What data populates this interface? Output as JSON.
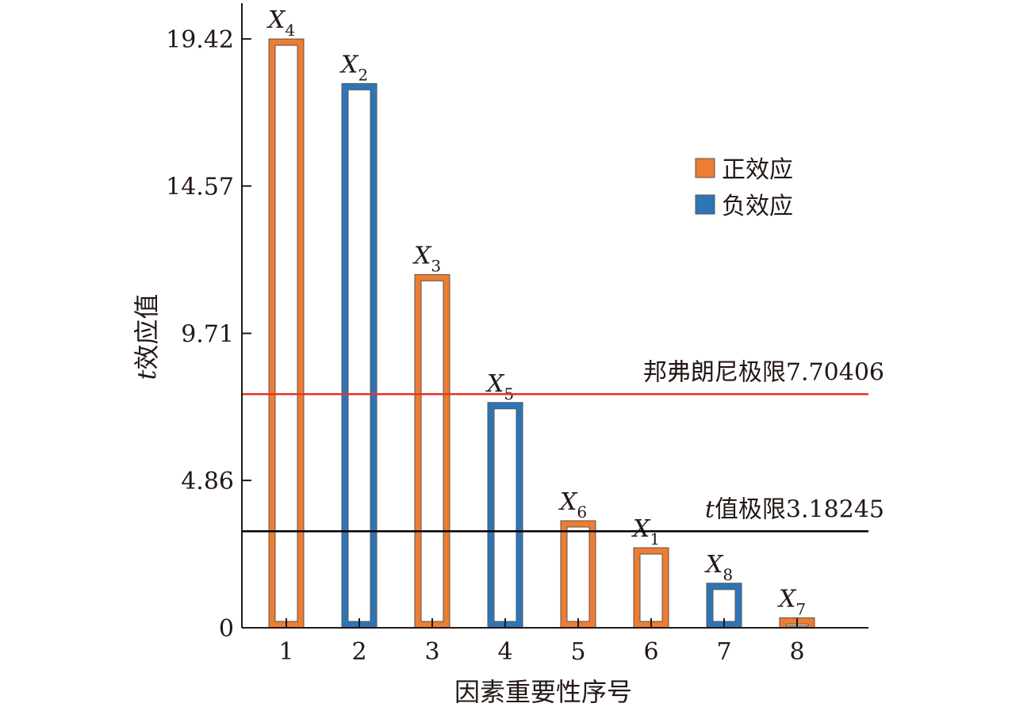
{
  "chart_data": {
    "type": "bar",
    "categories": [
      "1",
      "2",
      "3",
      "4",
      "5",
      "6",
      "7",
      "8"
    ],
    "values": [
      19.42,
      17.95,
      11.65,
      7.43,
      3.53,
      2.64,
      1.47,
      0.33
    ],
    "variables": [
      "X4",
      "X2",
      "X3",
      "X5",
      "X6",
      "X1",
      "X8",
      "X7"
    ],
    "bar_labels": [
      {
        "main": "X",
        "sub": "4"
      },
      {
        "main": "X",
        "sub": "2"
      },
      {
        "main": "X",
        "sub": "3"
      },
      {
        "main": "X",
        "sub": "5"
      },
      {
        "main": "X",
        "sub": "6"
      },
      {
        "main": "X",
        "sub": "1"
      },
      {
        "main": "X",
        "sub": "8"
      },
      {
        "main": "X",
        "sub": "7"
      }
    ],
    "effect": [
      "positive",
      "negative",
      "positive",
      "negative",
      "positive",
      "positive",
      "negative",
      "positive"
    ],
    "xlabel": "因素重要性序号",
    "ylabel_prefix": "t",
    "ylabel_rest": "效应值",
    "yticks": [
      0,
      4.86,
      9.71,
      14.57,
      19.42
    ],
    "ytick_labels": [
      "0",
      "4.86",
      "9.71",
      "14.57",
      "19.42"
    ],
    "ylim": [
      0,
      20.6
    ],
    "legend": {
      "placement": "upper-right",
      "items": [
        {
          "label": "正效应",
          "color": "#ed7d31"
        },
        {
          "label": "负效应",
          "color": "#2e75b6"
        }
      ]
    },
    "reference_lines": [
      {
        "value": 7.70406,
        "label_prefix": "",
        "label": "邦弗朗尼极限7.70406",
        "color": "#e8332a"
      },
      {
        "value": 3.18245,
        "label_prefix": "t",
        "label": "值极限3.18245",
        "color": "#000000"
      }
    ],
    "colors": {
      "positive": "#ed7d31",
      "negative": "#2e75b6"
    },
    "grid": false
  }
}
